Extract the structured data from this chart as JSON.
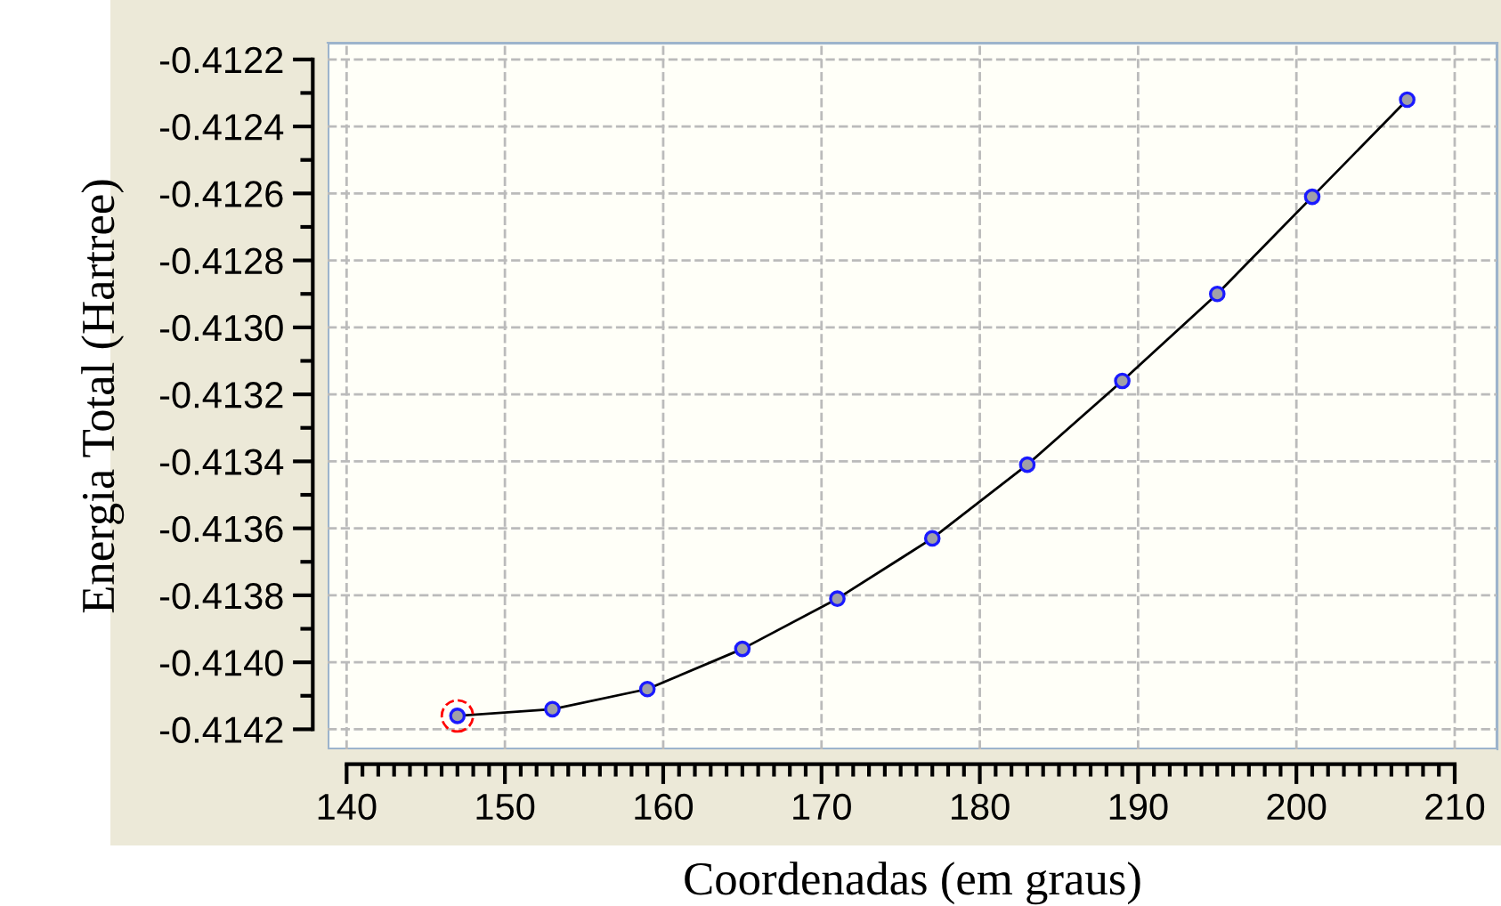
{
  "chart_data": {
    "type": "line",
    "xlabel": "Coordenadas (em graus)",
    "ylabel": "Energia Total (Hartree)",
    "x": [
      147,
      153,
      159,
      165,
      171,
      177,
      183,
      189,
      195,
      201,
      207
    ],
    "series": [
      {
        "color": "#000000",
        "marker": "circle",
        "values": [
          -0.41416,
          -0.41414,
          -0.41408,
          -0.41396,
          -0.41381,
          -0.41363,
          -0.41341,
          -0.41316,
          -0.4129,
          -0.41261,
          -0.41232
        ]
      },
      {
        "type": "scatter",
        "color": "#ff0000",
        "x": [
          147
        ],
        "values": [
          -0.41416
        ]
      }
    ],
    "xlim": [
      138.8,
      212.7
    ],
    "xticks": [
      140,
      150,
      160,
      170,
      180,
      190,
      200,
      210
    ],
    "ylim": [
      -0.41426,
      -0.41215
    ],
    "yticks": [
      {
        "value": -0.4122,
        "label": "-0.4122"
      },
      {
        "value": -0.4124,
        "label": "-0.4124"
      },
      {
        "value": -0.4126,
        "label": "-0.4126"
      },
      {
        "value": -0.4128,
        "label": "-0.4128"
      },
      {
        "value": -0.413,
        "label": "-0.4130"
      },
      {
        "value": -0.4132,
        "label": "-0.4132"
      },
      {
        "value": -0.4134,
        "label": "-0.4134"
      },
      {
        "value": -0.4136,
        "label": "-0.4136"
      },
      {
        "value": -0.4138,
        "label": "-0.4138"
      },
      {
        "value": -0.414,
        "label": "-0.4140"
      },
      {
        "value": -0.4142,
        "label": "-0.4142"
      }
    ],
    "grid": true,
    "line_style": "solid"
  }
}
